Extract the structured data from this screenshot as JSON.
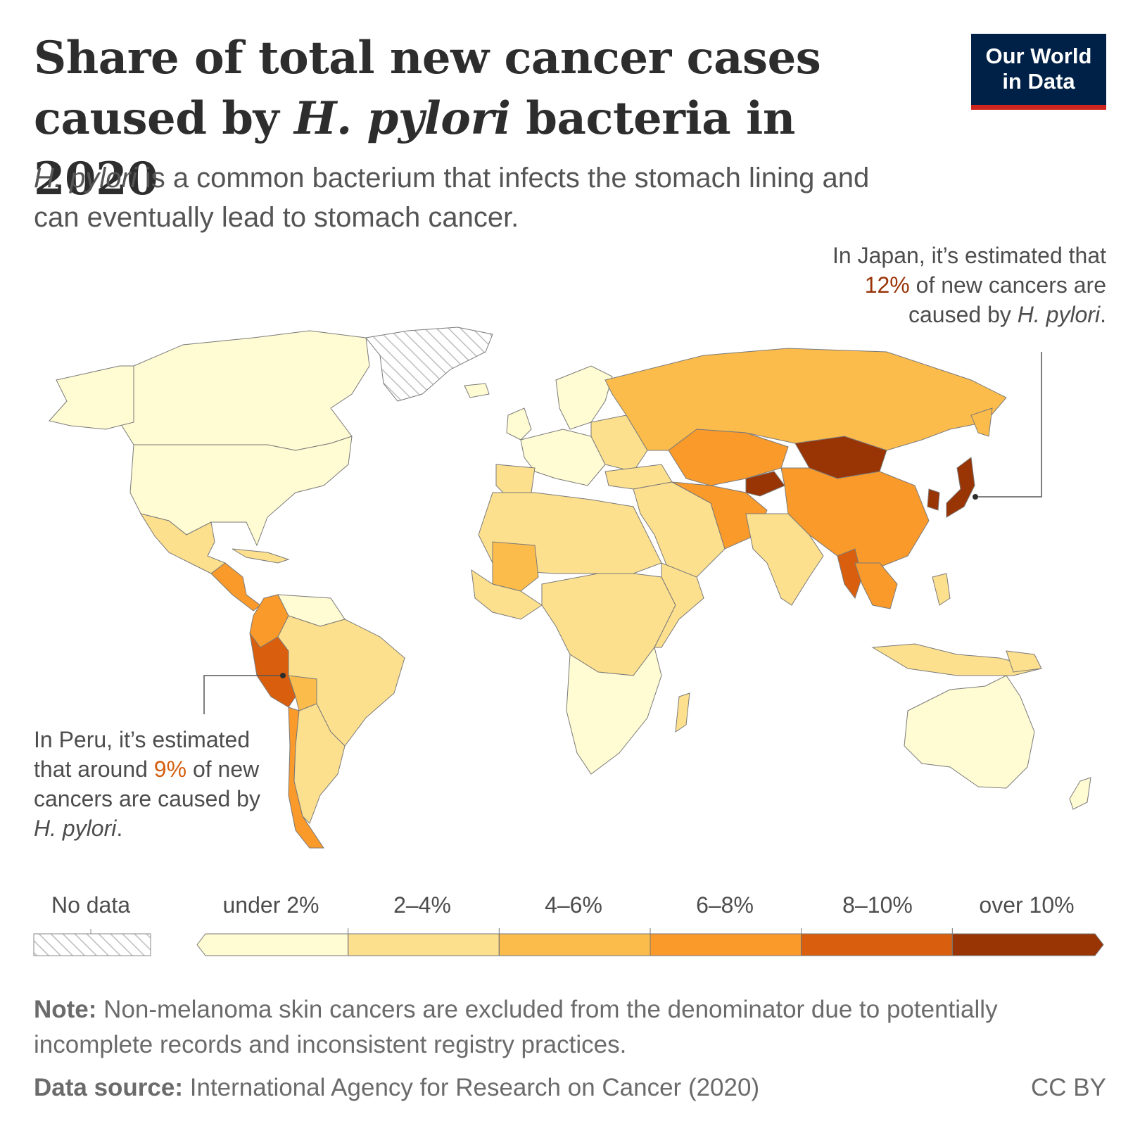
{
  "header": {
    "title_line1": "Share of total new cancer cases",
    "title_line2_pre": "caused by ",
    "title_line2_em": "H. pylori",
    "title_line2_post": " bacteria in 2020",
    "subtitle_em": "H. pylori",
    "subtitle_rest": " is a common bacterium that infects the stomach lining and can eventually lead to stomach cancer."
  },
  "logo": {
    "line1": "Our World",
    "line2": "in Data"
  },
  "annotations": {
    "japan": {
      "pre": "In Japan, it’s estimated that ",
      "value": "12%",
      "mid": " of new cancers are caused by ",
      "em": "H. pylori",
      "post": "."
    },
    "peru": {
      "pre": "In Peru, it’s estimated that around ",
      "value": "9%",
      "mid": " of new cancers are caused by ",
      "em": "H. pylori",
      "post": "."
    }
  },
  "legend": {
    "no_data_label": "No data",
    "bins": [
      {
        "label": "under 2%",
        "color": "#fffbd2"
      },
      {
        "label": "2–4%",
        "color": "#fde08e"
      },
      {
        "label": "4–6%",
        "color": "#fcbc4b"
      },
      {
        "label": "6–8%",
        "color": "#f99a2b"
      },
      {
        "label": "8–10%",
        "color": "#d95f0e"
      },
      {
        "label": "over 10%",
        "color": "#993404"
      }
    ]
  },
  "footer": {
    "note_label": "Note:",
    "note_text": " Non-melanoma skin cancers are excluded from the denominator due to potentially incomplete records and inconsistent registry practices.",
    "source_label": "Data source:",
    "source_text": " International Agency for Research on Cancer (2020)",
    "license": "CC BY"
  },
  "colors": {
    "accent_dark": "#002147",
    "accent_red": "#ce261e",
    "japan_value": "#9a3408",
    "peru_value": "#d4600f"
  }
}
